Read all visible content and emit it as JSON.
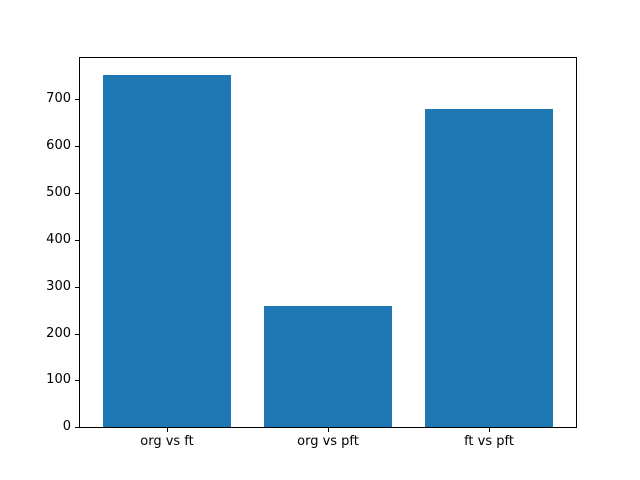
{
  "figure": {
    "background_color": "#ffffff",
    "axes_edge_color": "#000000",
    "tick_color": "#000000",
    "label_color": "#000000"
  },
  "chart_data": {
    "type": "bar",
    "title": "",
    "xlabel": "",
    "ylabel": "",
    "categories": [
      "org vs ft",
      "org vs pft",
      "ft vs pft"
    ],
    "values": [
      751,
      258,
      679
    ],
    "bar_color": "#1f77b4",
    "bar_positions": [
      0,
      1,
      2
    ],
    "bar_width": 0.8,
    "xlim": [
      -0.54,
      2.54
    ],
    "ylim": [
      0,
      788.55
    ],
    "yticks": [
      0,
      100,
      200,
      300,
      400,
      500,
      600,
      700
    ],
    "grid": false,
    "legend": false
  }
}
